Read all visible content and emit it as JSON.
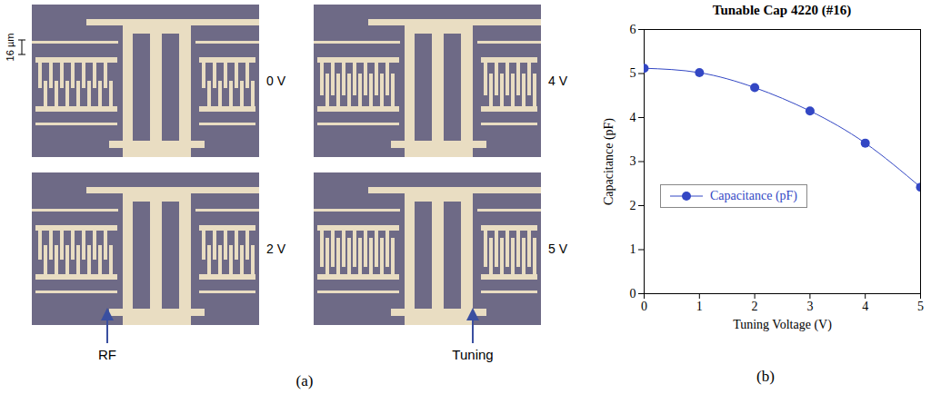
{
  "chart_data": {
    "type": "line",
    "title": "Tunable Cap 4220 (#16)",
    "xlabel": "Tuning Voltage (V)",
    "ylabel": "Capacitance (pF)",
    "x": [
      0,
      1,
      2,
      3,
      4,
      5
    ],
    "series": [
      {
        "name": "Capacitance (pF)",
        "color": "#3347c4",
        "marker": "circle",
        "values": [
          5.12,
          5.02,
          4.68,
          4.15,
          3.42,
          2.42
        ]
      }
    ],
    "xlim": [
      0,
      5
    ],
    "ylim": [
      0,
      6
    ],
    "xticks": [
      0,
      1,
      2,
      3,
      4,
      5
    ],
    "yticks": [
      0,
      1,
      2,
      3,
      4,
      5,
      6
    ],
    "legend": "lower left",
    "panel_label": "(b)"
  },
  "photographs": {
    "panel_label": "(a)",
    "scale_bar": "16 µm",
    "views": [
      "0 V",
      "4 V",
      "2 V",
      "5 V"
    ],
    "arrows": [
      "RF",
      "Tuning"
    ]
  }
}
